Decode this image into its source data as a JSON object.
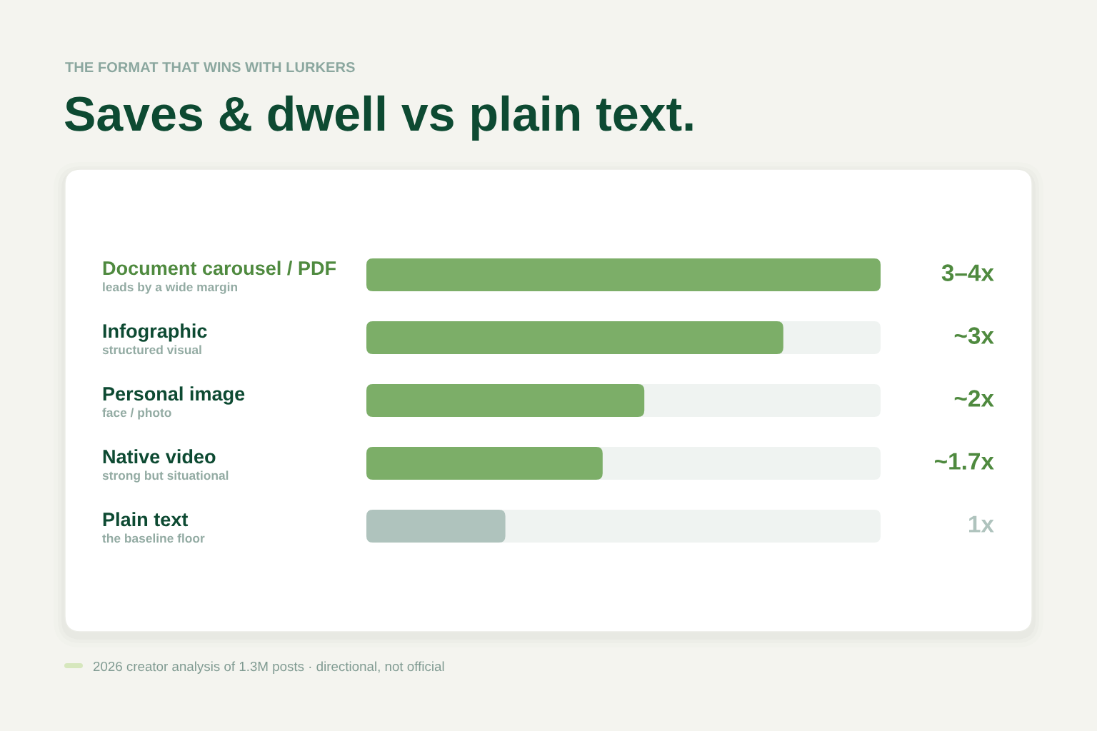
{
  "chart_data": {
    "type": "bar",
    "orientation": "horizontal",
    "subtitle": "THE FORMAT THAT WINS WITH LURKERS",
    "title": "Saves & dwell vs plain text.",
    "categories": [
      "Document carousel / PDF",
      "Infographic",
      "Personal image",
      "Native video",
      "Plain text"
    ],
    "values": [
      3.7,
      3,
      2,
      1.7,
      1
    ],
    "colors": [
      "#7cae68",
      "#7cae68",
      "#7cae68",
      "#7cae68",
      "#afc3bd"
    ],
    "value_labels": [
      "3–4x",
      "~3x",
      "~2x",
      "~1.7x",
      "1x"
    ],
    "xlim": [
      0,
      3.7
    ],
    "tick_labels": "y",
    "annotations": [
      "leads by a wide margin",
      "structured visual",
      "face / photo",
      "strong but situational",
      "the baseline floor",
      "2026 creator analysis of 1.3M posts · directional, not official"
    ]
  }
}
